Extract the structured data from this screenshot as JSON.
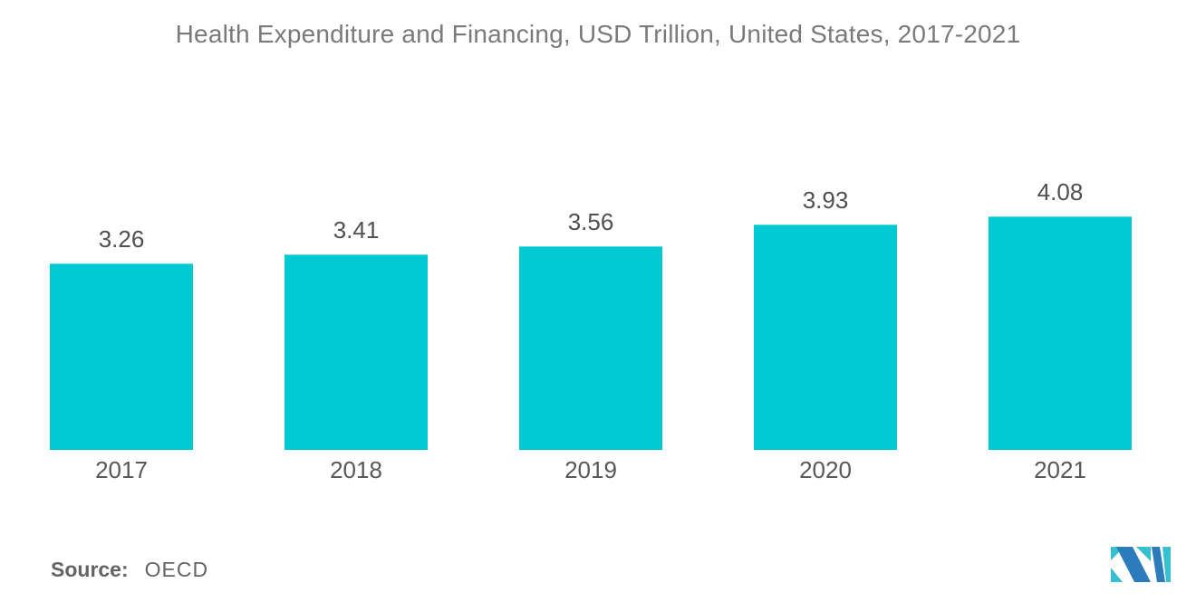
{
  "title": "Health Expenditure and Financing, USD Trillion, United States, 2017-2021",
  "source": {
    "label": "Source:",
    "value": "OECD"
  },
  "colors": {
    "bar": "#00C9D2",
    "title_text": "#7A7A7A",
    "value_text": "#4F5052",
    "year_text": "#58585A",
    "source_text": "#636466",
    "logo_blue": "#2C7CBB",
    "logo_teal": "#38BFD0"
  },
  "chart_data": {
    "type": "bar",
    "title": "Health Expenditure and Financing, USD Trillion, United States, 2017-2021",
    "categories": [
      "2017",
      "2018",
      "2019",
      "2020",
      "2021"
    ],
    "values": [
      3.26,
      3.41,
      3.56,
      3.93,
      4.08
    ],
    "value_labels": [
      "3.26",
      "3.41",
      "3.56",
      "3.93",
      "4.08"
    ],
    "xlabel": "",
    "ylabel": "",
    "ylim": [
      0,
      4.6
    ],
    "grid": false,
    "legend": false,
    "bar_color": "#00C9D2",
    "source": "OECD"
  }
}
